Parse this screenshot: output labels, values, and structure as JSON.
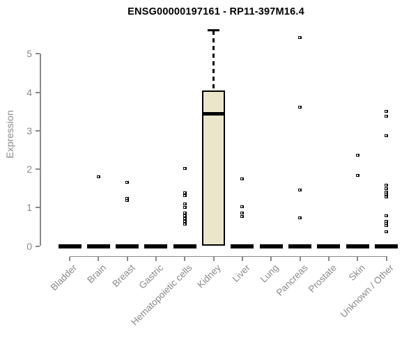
{
  "chart_data": {
    "type": "boxplot",
    "title": "ENSG00000197161 - RP11-397M16.4",
    "ylabel": "Expression",
    "xlabel": "",
    "ylim": [
      0,
      5
    ],
    "yticks": [
      0,
      1,
      2,
      3,
      4,
      5
    ],
    "grid": false,
    "legend": "none",
    "colors": {
      "box_fill": "#ebe6cb",
      "box_border": "#000000",
      "axis": "#888888",
      "tick_label_text": "#8a8a8a",
      "title_text": "#000000",
      "outlier": "#000000"
    },
    "categories": [
      "Bladder",
      "Brain",
      "Breast",
      "Gastric",
      "Hematopoietic cells",
      "Kidney",
      "Liver",
      "Lung",
      "Pancreas",
      "Prostate",
      "Skin",
      "Unknown / Other"
    ],
    "series": [
      {
        "category": "Bladder",
        "box": {
          "min": 0,
          "q1": 0,
          "median": 0,
          "q3": 0,
          "max": 0
        },
        "outliers": []
      },
      {
        "category": "Brain",
        "box": {
          "min": 0,
          "q1": 0,
          "median": 0,
          "q3": 0,
          "max": 0
        },
        "outliers": [
          1.81
        ]
      },
      {
        "category": "Breast",
        "box": {
          "min": 0,
          "q1": 0,
          "median": 0,
          "q3": 0,
          "max": 0
        },
        "outliers": [
          1.65,
          1.24,
          1.18
        ]
      },
      {
        "category": "Gastric",
        "box": {
          "min": 0,
          "q1": 0,
          "median": 0,
          "q3": 0,
          "max": 0
        },
        "outliers": []
      },
      {
        "category": "Hematopoietic cells",
        "box": {
          "min": 0,
          "q1": 0,
          "median": 0,
          "q3": 0,
          "max": 0
        },
        "outliers": [
          2.01,
          1.39,
          1.32,
          1.1,
          1.0,
          0.86,
          0.79,
          0.72,
          0.64,
          0.57
        ]
      },
      {
        "category": "Kidney",
        "box": {
          "min": 0,
          "q1": 0,
          "median": 3.44,
          "q3": 4.05,
          "max": 5.61
        },
        "outliers": []
      },
      {
        "category": "Liver",
        "box": {
          "min": 0,
          "q1": 0,
          "median": 0,
          "q3": 0,
          "max": 0
        },
        "outliers": [
          1.75,
          1.02,
          0.86,
          0.77
        ]
      },
      {
        "category": "Lung",
        "box": {
          "min": 0,
          "q1": 0,
          "median": 0,
          "q3": 0,
          "max": 0
        },
        "outliers": []
      },
      {
        "category": "Pancreas",
        "box": {
          "min": 0,
          "q1": 0,
          "median": 0,
          "q3": 0,
          "max": 0
        },
        "outliers": [
          5.42,
          3.62,
          1.45,
          0.73
        ]
      },
      {
        "category": "Prostate",
        "box": {
          "min": 0,
          "q1": 0,
          "median": 0,
          "q3": 0,
          "max": 0
        },
        "outliers": []
      },
      {
        "category": "Skin",
        "box": {
          "min": 0,
          "q1": 0,
          "median": 0,
          "q3": 0,
          "max": 0
        },
        "outliers": [
          2.37,
          1.83
        ]
      },
      {
        "category": "Unknown / Other",
        "box": {
          "min": 0,
          "q1": 0,
          "median": 0,
          "q3": 0,
          "max": 0
        },
        "outliers": [
          3.51,
          3.37,
          2.87,
          1.58,
          1.49,
          1.41,
          1.34,
          1.27,
          0.78,
          0.65,
          0.59,
          0.53,
          0.37
        ]
      }
    ]
  }
}
